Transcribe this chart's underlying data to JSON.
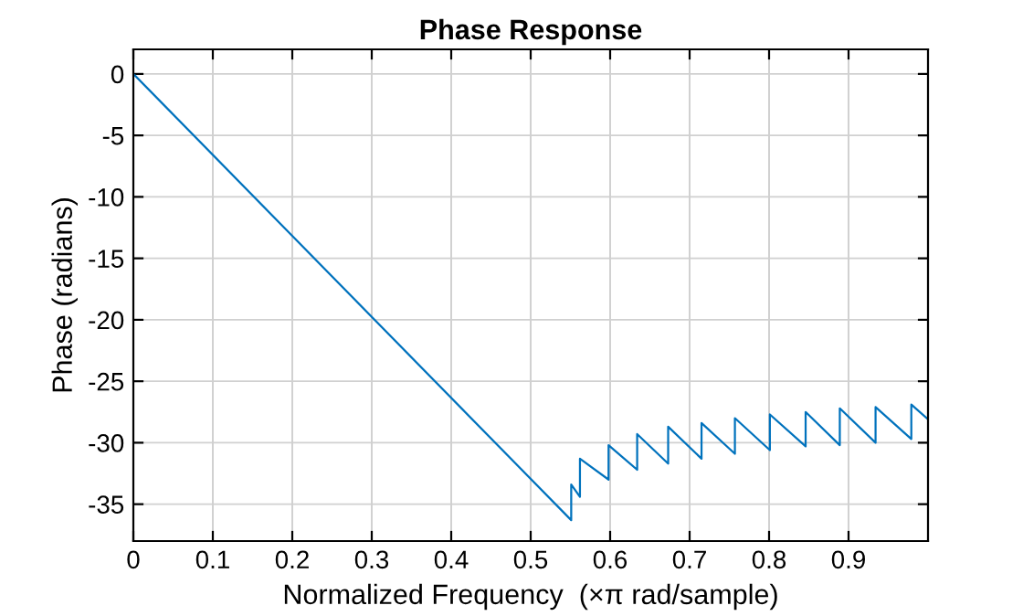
{
  "chart_data": {
    "type": "line",
    "title": "Phase Response",
    "xlabel": "Normalized Frequency  (×π rad/sample)",
    "ylabel": "Phase (radians)",
    "series": [
      {
        "color": "#0072bd",
        "x": [
          0,
          0.551,
          0.551,
          0.562,
          0.562,
          0.598,
          0.598,
          0.634,
          0.634,
          0.673,
          0.673,
          0.715,
          0.715,
          0.757,
          0.757,
          0.801,
          0.801,
          0.846,
          0.846,
          0.889,
          0.889,
          0.934,
          0.934,
          0.979,
          0.979,
          1.0
        ],
        "values": [
          0,
          -36.3,
          -33.4,
          -34.4,
          -31.3,
          -33.0,
          -30.2,
          -32.2,
          -29.3,
          -31.7,
          -28.7,
          -31.3,
          -28.4,
          -30.9,
          -28.0,
          -30.6,
          -27.7,
          -30.3,
          -27.5,
          -30.2,
          -27.2,
          -30.0,
          -27.1,
          -29.7,
          -26.9,
          -28.1
        ]
      }
    ],
    "xlim": [
      0,
      1
    ],
    "ylim": [
      -38,
      2
    ],
    "xticks": [
      0,
      0.1,
      0.2,
      0.3,
      0.4,
      0.5,
      0.6,
      0.7,
      0.8,
      0.9
    ],
    "yticks": [
      0,
      -5,
      -10,
      -15,
      -20,
      -25,
      -30,
      -35
    ],
    "grid": true,
    "marker": "none",
    "line_style": "solid"
  }
}
